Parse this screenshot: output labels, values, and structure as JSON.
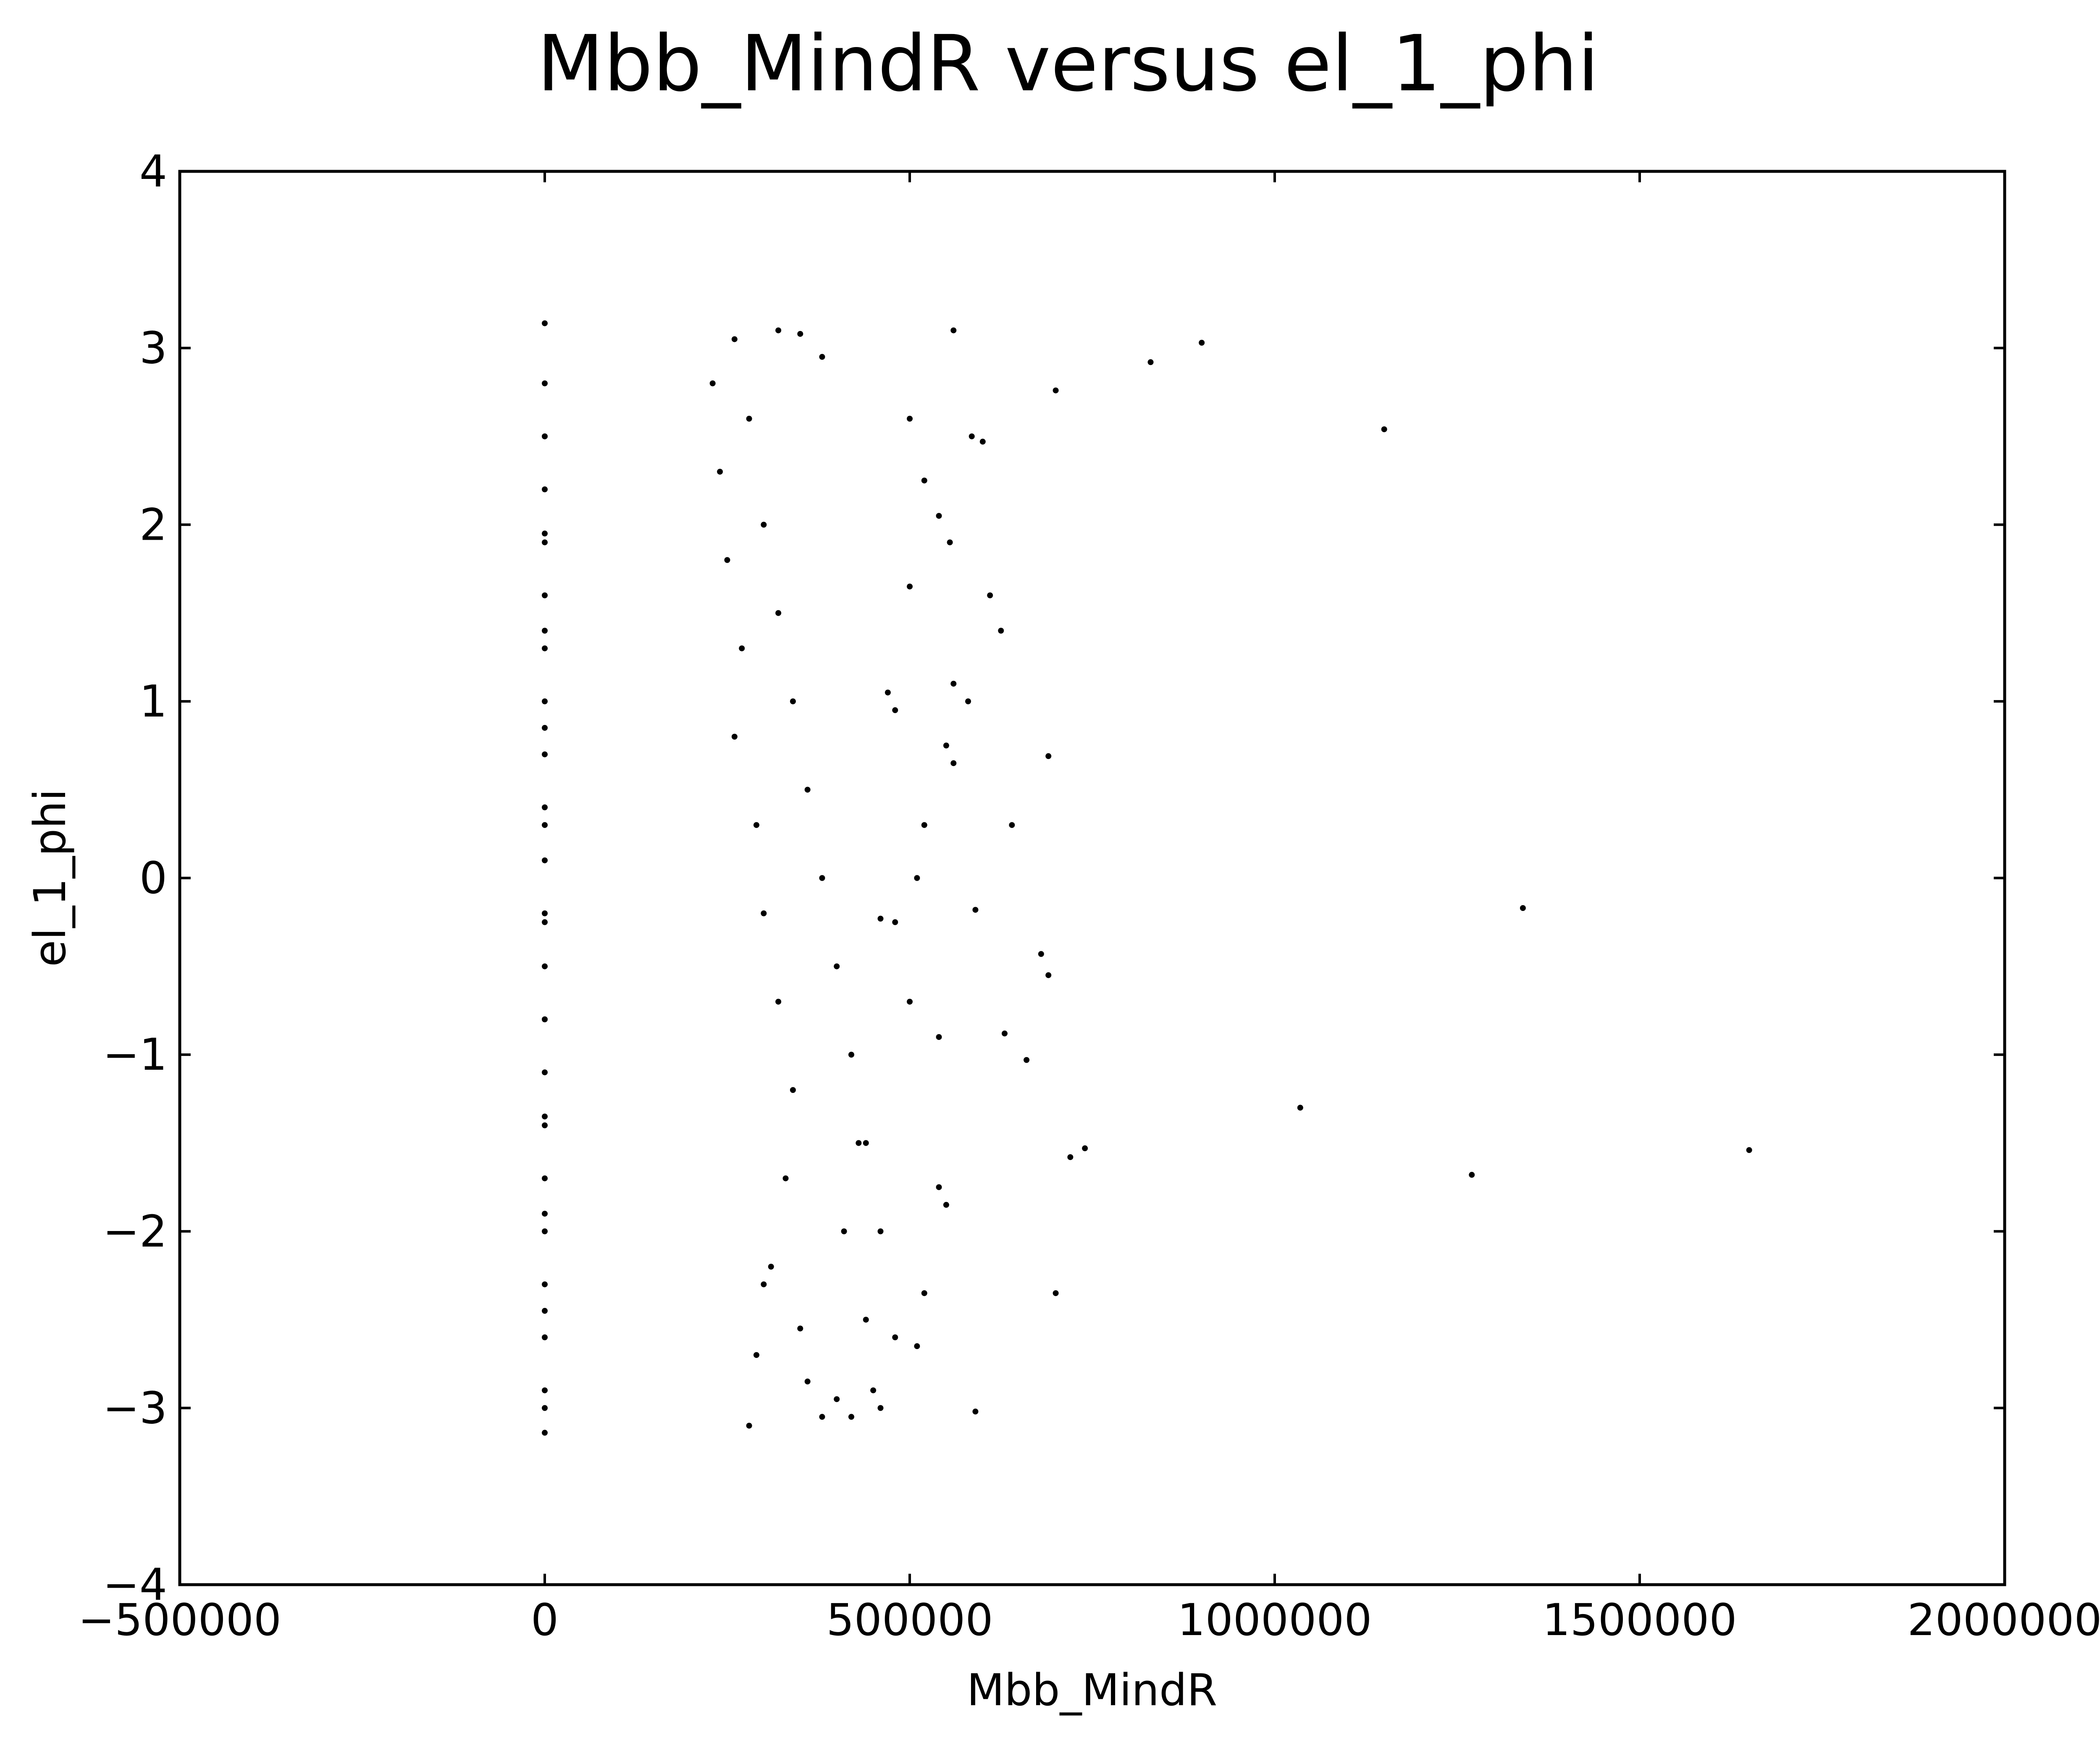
{
  "chart_data": {
    "type": "scatter",
    "title": "Mbb_MindR versus el_1_phi",
    "xlabel": "Mbb_MindR",
    "ylabel": "el_1_phi",
    "xlim": [
      -500000,
      2000000
    ],
    "ylim": [
      -4,
      4
    ],
    "xticks": [
      -500000,
      0,
      500000,
      1000000,
      1500000,
      2000000
    ],
    "xtick_labels": [
      "−500000",
      "0",
      "500000",
      "1000000",
      "1500000",
      "2000000"
    ],
    "yticks": [
      -4,
      -3,
      -2,
      -1,
      0,
      1,
      2,
      3,
      4
    ],
    "ytick_labels": [
      "−4",
      "−3",
      "−2",
      "−1",
      "0",
      "1",
      "2",
      "3",
      "4"
    ],
    "grid": false,
    "marker_color": "#000000",
    "series": [
      {
        "x": [
          0,
          0,
          0,
          0,
          0,
          0,
          0,
          0,
          0,
          0,
          0,
          0,
          0,
          0,
          0,
          0,
          0,
          0,
          0,
          0,
          0,
          0,
          0,
          0,
          0,
          0,
          0,
          0,
          0,
          0,
          0,
          0,
          0,
          560000,
          700000,
          830000,
          900000,
          1150000,
          585000,
          600000,
          500000,
          520000,
          540000,
          555000,
          500000,
          610000,
          625000,
          560000,
          580000,
          470000,
          480000,
          550000,
          560000,
          640000,
          690000,
          520000,
          510000,
          480000,
          460000,
          590000,
          1340000,
          500000,
          540000,
          680000,
          690000,
          740000,
          720000,
          630000,
          660000,
          1035000,
          1650000,
          1270000,
          700000,
          540000,
          550000,
          520000,
          510000,
          480000,
          450000,
          440000,
          420000,
          460000,
          400000,
          590000,
          380000,
          360000,
          410000,
          430000,
          350000,
          300000,
          280000,
          290000,
          310000,
          330000,
          340000,
          320000,
          300000,
          290000,
          260000,
          270000,
          250000,
          240000,
          230000,
          260000,
          280000,
          300000,
          320000,
          340000,
          360000,
          380000,
          400000,
          420000,
          440000,
          460000,
          380000,
          350000,
          320000
        ],
        "y": [
          -3.14,
          -2.9,
          -2.6,
          -2.3,
          -2.0,
          -1.7,
          -1.4,
          -1.1,
          -0.8,
          -0.5,
          -0.2,
          0.1,
          0.4,
          0.7,
          1.0,
          1.3,
          1.6,
          1.9,
          2.2,
          2.5,
          2.8,
          3.14,
          -3.0,
          -2.45,
          -1.9,
          -1.35,
          -0.8,
          -0.25,
          0.3,
          0.85,
          1.4,
          1.95,
          2.5,
          3.1,
          2.76,
          2.92,
          3.03,
          2.54,
          2.5,
          2.47,
          2.6,
          2.25,
          2.05,
          1.9,
          1.65,
          1.6,
          1.4,
          1.1,
          1.0,
          1.05,
          0.95,
          0.75,
          0.65,
          0.3,
          0.69,
          0.3,
          0.0,
          -0.25,
          -0.23,
          -0.18,
          -0.17,
          -0.7,
          -0.9,
          -0.43,
          -0.55,
          -1.53,
          -1.58,
          -0.88,
          -1.03,
          -1.3,
          -1.54,
          -1.68,
          -2.35,
          -1.75,
          -1.85,
          -2.35,
          -2.65,
          -2.6,
          -2.9,
          -2.5,
          -3.05,
          -3.0,
          -2.95,
          -3.02,
          -3.05,
          -2.85,
          -2.0,
          -1.5,
          -2.55,
          -2.3,
          -3.1,
          -2.7,
          -2.2,
          -1.7,
          -1.2,
          -0.7,
          -0.2,
          0.3,
          0.8,
          1.3,
          1.8,
          2.3,
          2.8,
          3.05,
          2.6,
          2.0,
          1.5,
          1.0,
          0.5,
          0.0,
          -0.5,
          -1.0,
          -1.5,
          -2.0,
          2.95,
          3.08,
          3.1
        ]
      }
    ]
  }
}
